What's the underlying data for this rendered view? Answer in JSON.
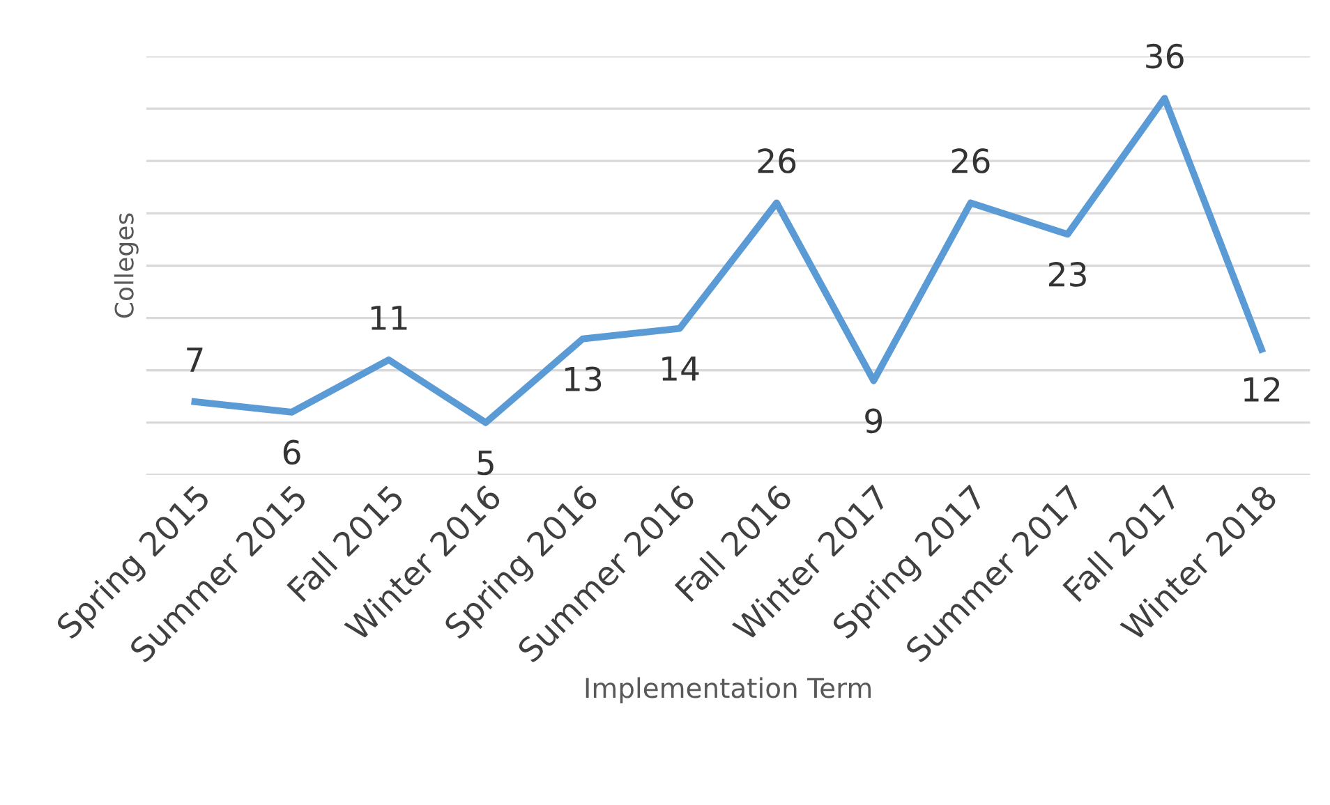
{
  "chart_data": {
    "type": "line",
    "xlabel": "Implementation Term",
    "ylabel": "Colleges",
    "categories": [
      "Spring 2015",
      "Summer 2015",
      "Fall 2015",
      "Winter 2016",
      "Spring 2016",
      "Summer 2016",
      "Fall 2016",
      "Winter 2017",
      "Spring 2017",
      "Summer 2017",
      "Fall 2017",
      "Winter 2018"
    ],
    "series": [
      {
        "color": "#5b9bd5",
        "values": [
          7,
          6,
          11,
          5,
          13,
          14,
          26,
          9,
          26,
          23,
          36,
          12
        ]
      }
    ],
    "ylim": [
      0,
      40
    ],
    "yticks": [
      {
        "value": 0,
        "label": null
      },
      {
        "value": 5,
        "label": null
      },
      {
        "value": 10,
        "label": null
      },
      {
        "value": 15,
        "label": null
      },
      {
        "value": 20,
        "label": null
      },
      {
        "value": 25,
        "label": null
      },
      {
        "value": 30,
        "label": null
      },
      {
        "value": 35,
        "label": null
      },
      {
        "value": 40,
        "label": null
      }
    ],
    "tick_labels": "x",
    "grid": "y",
    "data_labels": true,
    "marker": "none",
    "line_style": "solid",
    "legend": false
  }
}
